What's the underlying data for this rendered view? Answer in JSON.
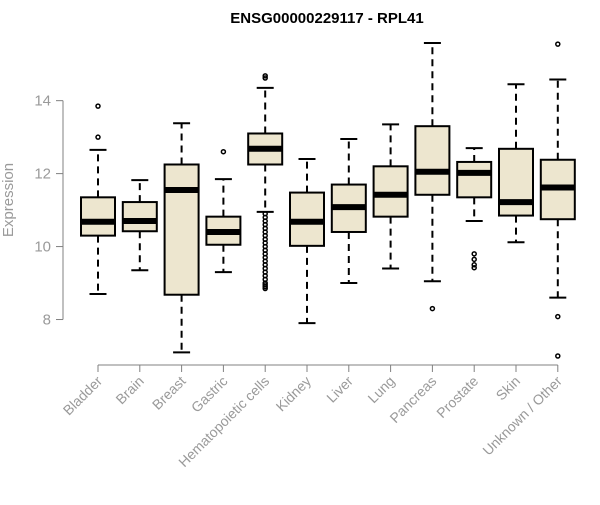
{
  "chart_data": {
    "type": "boxplot",
    "title": "ENSG00000229117 - RPL41",
    "ylabel": "Expression",
    "xlabel": "",
    "ylim": [
      7,
      15.8
    ],
    "yticks": [
      8,
      10,
      12,
      14
    ],
    "grid": false,
    "box_fill": "#ede6cf",
    "box_stroke": "#000000",
    "categories": [
      "Bladder",
      "Brain",
      "Breast",
      "Gastric",
      "Hematopoietic cells",
      "Kidney",
      "Liver",
      "Lung",
      "Pancreas",
      "Prostate",
      "Skin",
      "Unknown / Other"
    ],
    "boxes": [
      {
        "whisker_low": 8.7,
        "q1": 10.3,
        "median": 10.68,
        "q3": 11.35,
        "whisker_high": 12.65,
        "outliers": [
          13.0,
          13.85
        ]
      },
      {
        "whisker_low": 9.35,
        "q1": 10.42,
        "median": 10.7,
        "q3": 11.22,
        "whisker_high": 11.82,
        "outliers": []
      },
      {
        "whisker_low": 7.1,
        "q1": 8.68,
        "median": 11.55,
        "q3": 12.25,
        "whisker_high": 13.38,
        "outliers": []
      },
      {
        "whisker_low": 9.3,
        "q1": 10.05,
        "median": 10.4,
        "q3": 10.82,
        "whisker_high": 11.85,
        "outliers": [
          12.6
        ]
      },
      {
        "whisker_low": 10.95,
        "q1": 12.25,
        "median": 12.68,
        "q3": 13.1,
        "whisker_high": 14.35,
        "outliers": [
          14.62,
          14.68,
          10.9,
          10.8,
          10.7,
          10.6,
          10.5,
          10.4,
          10.3,
          10.2,
          10.1,
          10.0,
          9.9,
          9.8,
          9.7,
          9.6,
          9.5,
          9.4,
          9.3,
          9.2,
          9.1,
          9.0,
          8.95,
          8.9,
          8.85
        ]
      },
      {
        "whisker_low": 7.9,
        "q1": 10.02,
        "median": 10.68,
        "q3": 11.48,
        "whisker_high": 12.4,
        "outliers": []
      },
      {
        "whisker_low": 9.0,
        "q1": 10.4,
        "median": 11.08,
        "q3": 11.7,
        "whisker_high": 12.95,
        "outliers": []
      },
      {
        "whisker_low": 9.4,
        "q1": 10.82,
        "median": 11.42,
        "q3": 12.2,
        "whisker_high": 13.35,
        "outliers": []
      },
      {
        "whisker_low": 9.05,
        "q1": 11.42,
        "median": 12.05,
        "q3": 13.3,
        "whisker_high": 15.58,
        "outliers": [
          8.3
        ]
      },
      {
        "whisker_low": 10.7,
        "q1": 11.35,
        "median": 12.02,
        "q3": 12.32,
        "whisker_high": 12.7,
        "outliers": [
          9.8,
          9.65,
          9.5,
          9.42
        ]
      },
      {
        "whisker_low": 10.12,
        "q1": 10.85,
        "median": 11.22,
        "q3": 12.68,
        "whisker_high": 14.45,
        "outliers": []
      },
      {
        "whisker_low": 8.6,
        "q1": 10.75,
        "median": 11.62,
        "q3": 12.38,
        "whisker_high": 14.58,
        "outliers": [
          15.55,
          8.08,
          7.0
        ]
      }
    ]
  }
}
